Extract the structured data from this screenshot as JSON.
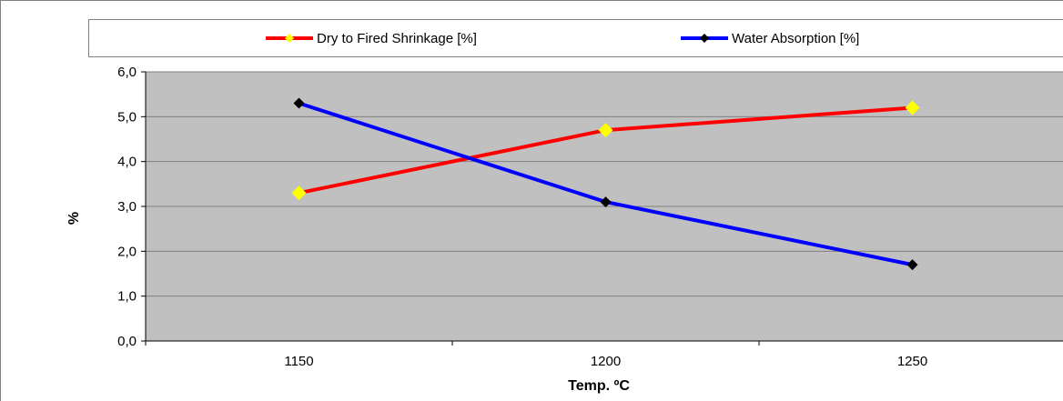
{
  "chart_data": {
    "type": "line",
    "categories": [
      "1150",
      "1200",
      "1250"
    ],
    "series": [
      {
        "name": "Dry to Fired Shrinkage [%]",
        "values": [
          3.3,
          4.7,
          5.2
        ],
        "color": "#ff0000",
        "marker_color": "#ffff00"
      },
      {
        "name": "Water Absorption [%]",
        "values": [
          5.3,
          3.1,
          1.7
        ],
        "color": "#0000ff",
        "marker_color": "#000000"
      }
    ],
    "title": "",
    "xlabel": "Temp. ºC",
    "ylabel": "%",
    "ylim": [
      0,
      6
    ],
    "yticks": [
      "0,0",
      "1,0",
      "2,0",
      "3,0",
      "4,0",
      "5,0",
      "6,0"
    ],
    "grid": true,
    "legend_position": "top",
    "plot_background": "#c0c0c0"
  }
}
